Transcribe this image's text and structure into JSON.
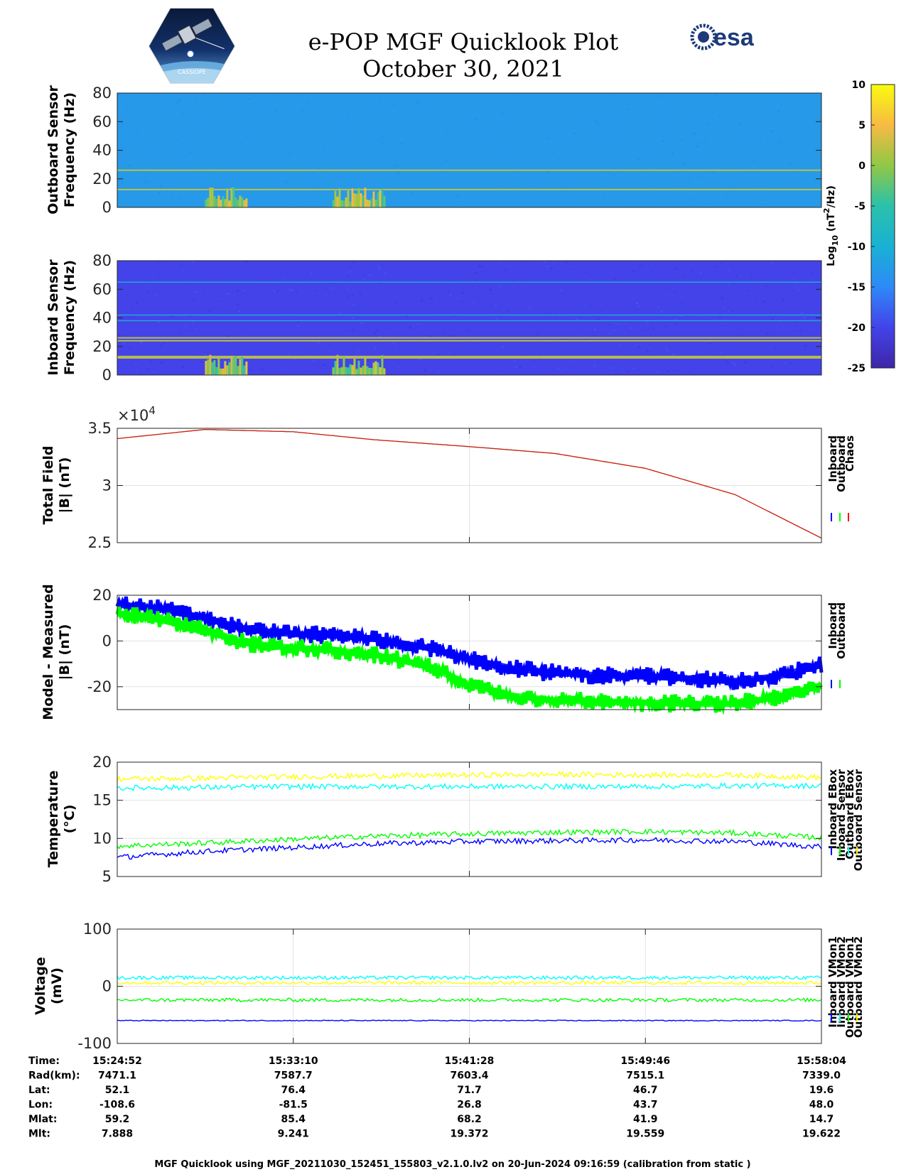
{
  "header": {
    "title": "e-POP MGF Quicklook Plot",
    "date": "October 30, 2021",
    "esa_logo_text": "esa",
    "cassiope_text": "CASSIOPE"
  },
  "colorbar": {
    "label": "Log10 (nT2/Hz)",
    "ticks": [
      "10",
      "5",
      "0",
      "-5",
      "-10",
      "-15",
      "-20",
      "-25"
    ],
    "range": [
      -25,
      10
    ],
    "colormap": [
      "#3e26a8",
      "#4343e9",
      "#2e89f7",
      "#19b1d4",
      "#2ac1aa",
      "#90c846",
      "#f8ba43",
      "#f9fb0e"
    ]
  },
  "colors": {
    "inboard": "#0000ff",
    "outboard": "#00ff00",
    "chaos": "#ff0000",
    "cyan": "#00ffff",
    "yellow": "#ffff00",
    "spec_outboard_bg": "#2a7ff6",
    "spec_inboard_bg": "#3a4fe4"
  },
  "chart_data": [
    {
      "type": "heatmap",
      "ylabel": "Outboard Sensor\nFrequency (Hz)",
      "ylim": [
        0,
        80
      ],
      "yticks": [
        "80",
        "60",
        "40",
        "20",
        "0"
      ],
      "xlim": [
        "15:24:52",
        "15:58:04"
      ],
      "lines_hz": [
        12.5,
        26
      ],
      "background_level_log10": -13,
      "bursts": [
        {
          "start": "15:29:00",
          "end": "15:31:00",
          "fmax_hz": 12,
          "level_log10": 5
        },
        {
          "start": "15:35:00",
          "end": "15:37:30",
          "fmax_hz": 12,
          "level_log10": 5
        }
      ]
    },
    {
      "type": "heatmap",
      "ylabel": "Inboard Sensor\nFrequency (Hz)",
      "ylim": [
        0,
        80
      ],
      "yticks": [
        "80",
        "60",
        "40",
        "20",
        "0"
      ],
      "xlim": [
        "15:24:52",
        "15:58:04"
      ],
      "lines_hz": [
        65,
        42,
        38,
        26,
        24,
        13,
        12
      ],
      "background_level_log10": -20,
      "bursts": [
        {
          "start": "15:29:00",
          "end": "15:31:00",
          "fmax_hz": 12,
          "level_log10": 5
        },
        {
          "start": "15:35:00",
          "end": "15:37:30",
          "fmax_hz": 12,
          "level_log10": 5
        }
      ]
    },
    {
      "type": "line",
      "ylabel": "Total Field\n|B| (nT)",
      "exponent_label": "×10^4",
      "ylim": [
        2.5,
        3.5
      ],
      "yticks": [
        "3.5",
        "3",
        "2.5"
      ],
      "x": [
        "15:24:52",
        "15:29:00",
        "15:33:10",
        "15:37:00",
        "15:41:28",
        "15:45:30",
        "15:49:46",
        "15:54:00",
        "15:58:04"
      ],
      "series": [
        {
          "name": "Inboard",
          "values": [
            3.41,
            3.49,
            3.47,
            3.4,
            3.34,
            3.28,
            3.15,
            2.92,
            2.54
          ]
        },
        {
          "name": "Outboard",
          "values": [
            3.41,
            3.49,
            3.47,
            3.4,
            3.34,
            3.28,
            3.15,
            2.92,
            2.54
          ]
        },
        {
          "name": "Chaos",
          "values": [
            3.41,
            3.49,
            3.47,
            3.4,
            3.34,
            3.28,
            3.15,
            2.92,
            2.54
          ]
        }
      ]
    },
    {
      "type": "line",
      "ylabel": "Model - Measured\n|B| (nT)",
      "ylim": [
        -30,
        20
      ],
      "yticks": [
        "20",
        "0",
        "-20"
      ],
      "x": [
        "15:24:52",
        "15:27:00",
        "15:29:00",
        "15:31:00",
        "15:33:10",
        "15:35:00",
        "15:37:00",
        "15:39:30",
        "15:41:28",
        "15:43:30",
        "15:45:30",
        "15:47:30",
        "15:49:46",
        "15:52:00",
        "15:54:00",
        "15:56:00",
        "15:58:04"
      ],
      "series": [
        {
          "name": "Inboard",
          "values": [
            16,
            14,
            10,
            5,
            3,
            2.5,
            1,
            -3,
            -8,
            -12,
            -14,
            -15,
            -15.5,
            -16.5,
            -17.5,
            -15.5,
            -10.5
          ]
        },
        {
          "name": "Outboard",
          "values": [
            12,
            9,
            5,
            -1,
            -3,
            -4,
            -6,
            -11,
            -19,
            -24,
            -26,
            -26.5,
            -27,
            -27.5,
            -27.5,
            -24.5,
            -19.5
          ]
        }
      ]
    },
    {
      "type": "line",
      "ylabel": "Temperature\n(°C)",
      "ylim": [
        5,
        20
      ],
      "yticks": [
        "20",
        "15",
        "10",
        "5"
      ],
      "x": [
        "15:24:52",
        "15:29:00",
        "15:33:10",
        "15:37:00",
        "15:41:28",
        "15:45:30",
        "15:49:46",
        "15:54:00",
        "15:58:04"
      ],
      "series": [
        {
          "name": "Inboard EBox",
          "values": [
            7.5,
            8.3,
            8.8,
            9.3,
            9.6,
            9.7,
            9.8,
            9.6,
            8.9
          ]
        },
        {
          "name": "Inboard Sensor",
          "values": [
            9.0,
            9.4,
            9.9,
            10.3,
            10.6,
            10.8,
            10.9,
            10.7,
            10.1
          ]
        },
        {
          "name": "Outboard EBox",
          "values": [
            16.6,
            16.7,
            16.8,
            16.8,
            16.8,
            16.8,
            16.8,
            16.9,
            16.9
          ]
        },
        {
          "name": "Outboard Sensor",
          "values": [
            17.8,
            17.9,
            18.1,
            18.2,
            18.3,
            18.4,
            18.3,
            18.3,
            18.0
          ]
        }
      ]
    },
    {
      "type": "line",
      "ylabel": "Voltage\n(mV)",
      "ylim": [
        -100,
        100
      ],
      "yticks": [
        "100",
        "0",
        "-100"
      ],
      "x": [
        "15:24:52",
        "15:33:10",
        "15:41:28",
        "15:49:46",
        "15:58:04"
      ],
      "series": [
        {
          "name": "Inboard VMon1",
          "values": [
            -60,
            -60,
            -60,
            -60,
            -60
          ]
        },
        {
          "name": "Inboard VMon2",
          "values": [
            15,
            15,
            15,
            15,
            15
          ]
        },
        {
          "name": "Outboard VMon1",
          "values": [
            -24,
            -24,
            -24,
            -24,
            -24
          ]
        },
        {
          "name": "Outboard VMon2",
          "values": [
            6,
            6,
            6,
            6,
            6
          ]
        }
      ]
    }
  ],
  "legends": [
    [
      "Inboard",
      "Outboard",
      "Chaos"
    ],
    [
      "Inboard",
      "Outboard"
    ],
    [
      "Inboard EBox",
      "Inboard Sensor",
      "Outboard EBox",
      "Outboard Sensor"
    ],
    [
      "Inboard VMon1",
      "Inboard VMon2",
      "Outboard VMon1",
      "Outboard VMon2"
    ]
  ],
  "ephemeris": {
    "labels": [
      "Time:",
      "Rad(km):",
      "Lat:",
      "Lon:",
      "Mlat:",
      "Mlt:"
    ],
    "columns": [
      [
        "15:24:52",
        "7471.1",
        "52.1",
        "-108.6",
        "59.2",
        "7.888"
      ],
      [
        "15:33:10",
        "7587.7",
        "76.4",
        "-81.5",
        "85.4",
        "9.241"
      ],
      [
        "15:41:28",
        "7603.4",
        "71.7",
        "26.8",
        "68.2",
        "19.372"
      ],
      [
        "15:49:46",
        "7515.1",
        "46.7",
        "43.7",
        "41.9",
        "19.559"
      ],
      [
        "15:58:04",
        "7339.0",
        "19.6",
        "48.0",
        "14.7",
        "19.622"
      ]
    ]
  },
  "footer": "MGF Quicklook using MGF_20211030_152451_155803_v2.1.0.lv2 on 20-Jun-2024 09:16:59 (calibration from static )"
}
